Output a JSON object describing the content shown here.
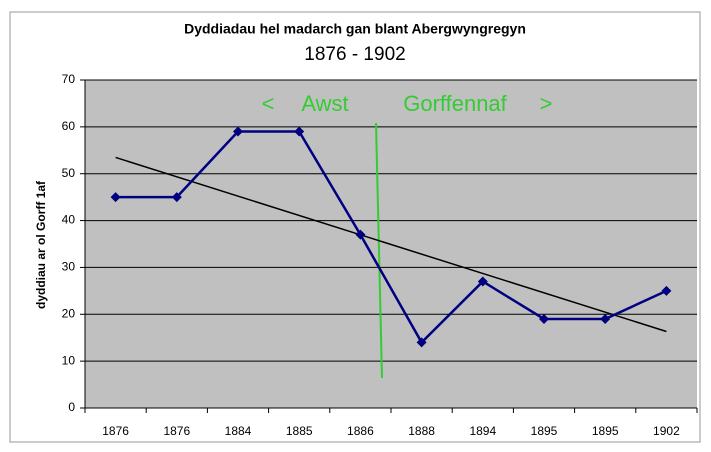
{
  "chart_data": {
    "type": "line",
    "title": "Dyddiadau hel madarch gan blant Abergwyngregyn",
    "subtitle": "1876 - 1902",
    "y_label": "dyddiau ar ol Gorff 1af",
    "annotations": [
      "<",
      "Awst",
      "Gorffennaf",
      ">"
    ],
    "categories": [
      "1876",
      "1876",
      "1884",
      "1885",
      "1886",
      "1888",
      "1894",
      "1895",
      "1895",
      "1902"
    ],
    "values": [
      45,
      45,
      59,
      59,
      37,
      14,
      27,
      19,
      19,
      25
    ],
    "color": "#000080",
    "trendline": true,
    "ylim": [
      0,
      70
    ],
    "yticks": [
      0,
      10,
      20,
      30,
      40,
      50,
      60,
      70
    ],
    "grid": true
  }
}
